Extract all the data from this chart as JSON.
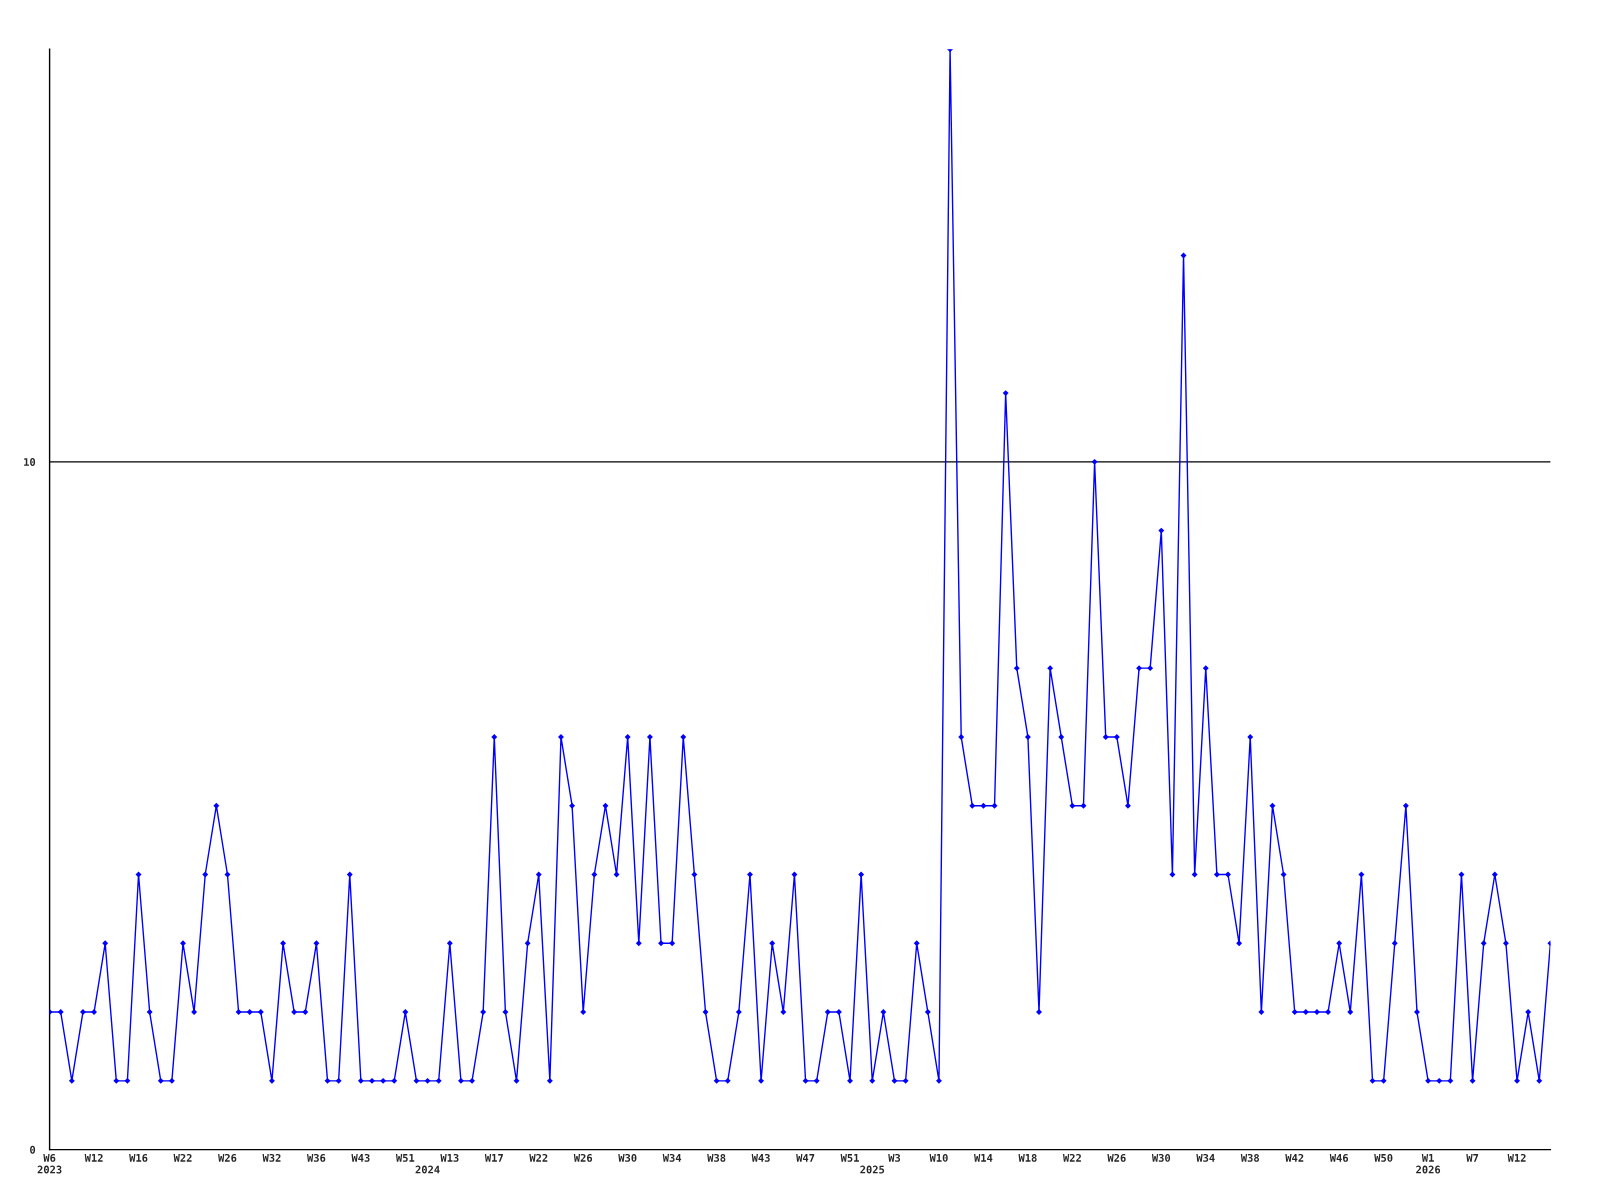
{
  "chart_data": {
    "type": "line",
    "categories": [
      "W6\n2023",
      null,
      null,
      null,
      "W12",
      null,
      null,
      null,
      "W16",
      null,
      null,
      null,
      "W22",
      null,
      null,
      null,
      "W26",
      null,
      null,
      null,
      "W32",
      null,
      null,
      null,
      "W36",
      null,
      null,
      null,
      "W43",
      null,
      null,
      null,
      "W51",
      null,
      "\n2024",
      null,
      "W13",
      null,
      null,
      null,
      "W17",
      null,
      null,
      null,
      "W22",
      null,
      null,
      null,
      "W26",
      null,
      null,
      null,
      "W30",
      null,
      null,
      null,
      "W34",
      null,
      null,
      null,
      "W38",
      null,
      null,
      null,
      "W43",
      null,
      null,
      null,
      "W47",
      null,
      null,
      null,
      "W51",
      null,
      "\n2025",
      null,
      "W3",
      null,
      null,
      null,
      "W10",
      null,
      null,
      null,
      "W14",
      null,
      null,
      null,
      "W18",
      null,
      null,
      null,
      "W22",
      null,
      null,
      null,
      "W26",
      null,
      null,
      null,
      "W30",
      null,
      null,
      null,
      "W34",
      null,
      null,
      null,
      "W38",
      null,
      null,
      null,
      "W42",
      null,
      null,
      null,
      "W46",
      null,
      null,
      null,
      "W50",
      null,
      null,
      null,
      "W1\n2026",
      null,
      null,
      null,
      "W7",
      null,
      null,
      null,
      "W12",
      null,
      null,
      null
    ],
    "series": [
      {
        "color": "#0000ff",
        "values": [
          2,
          2,
          1,
          2,
          2,
          3,
          1,
          1,
          4,
          2,
          1,
          1,
          3,
          2,
          4,
          5,
          4,
          2,
          2,
          2,
          1,
          3,
          2,
          2,
          3,
          1,
          1,
          4,
          1,
          1,
          1,
          1,
          2,
          1,
          1,
          1,
          3,
          1,
          1,
          2,
          6,
          2,
          1,
          3,
          4,
          1,
          6,
          5,
          2,
          4,
          5,
          4,
          6,
          3,
          6,
          3,
          3,
          6,
          4,
          2,
          1,
          1,
          2,
          4,
          1,
          3,
          2,
          4,
          1,
          1,
          2,
          2,
          1,
          4,
          1,
          2,
          1,
          1,
          3,
          2,
          1,
          16,
          6,
          5,
          5,
          5,
          11,
          7,
          6,
          2,
          7,
          6,
          5,
          5,
          10,
          6,
          6,
          5,
          7,
          7,
          9,
          4,
          13,
          4,
          7,
          4,
          4,
          3,
          6,
          2,
          5,
          4,
          2,
          2,
          2,
          2,
          3,
          2,
          4,
          1,
          1,
          3,
          5,
          2,
          1,
          1,
          1,
          4,
          1,
          3,
          4,
          3,
          1,
          2,
          1,
          3
        ]
      }
    ],
    "ylim": [
      0,
      16
    ],
    "yticks": [
      0,
      10
    ],
    "grid": "y",
    "marker": "diamond",
    "line_style": "solid",
    "legend": false
  }
}
